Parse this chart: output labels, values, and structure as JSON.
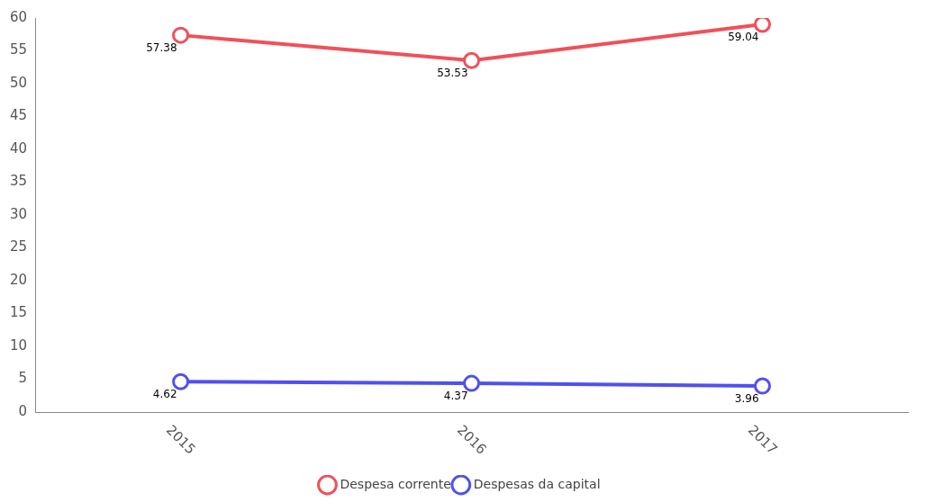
{
  "chart_data": {
    "type": "line",
    "categories": [
      "2015",
      "2016",
      "2017"
    ],
    "series": [
      {
        "name": "Despesa corrente",
        "color": "#f0505a",
        "values": [
          57.38,
          53.53,
          59.04
        ]
      },
      {
        "name": "Despesas da capital",
        "color": "#5050f0",
        "values": [
          4.62,
          4.37,
          3.96
        ]
      }
    ],
    "ylim": [
      0,
      60
    ],
    "yticks": [
      0,
      5,
      10,
      15,
      20,
      25,
      30,
      35,
      40,
      45,
      50,
      55,
      60
    ],
    "grid": false,
    "legend": "bottom",
    "marker": "circle",
    "line_style": "solid",
    "data_labels": true
  }
}
